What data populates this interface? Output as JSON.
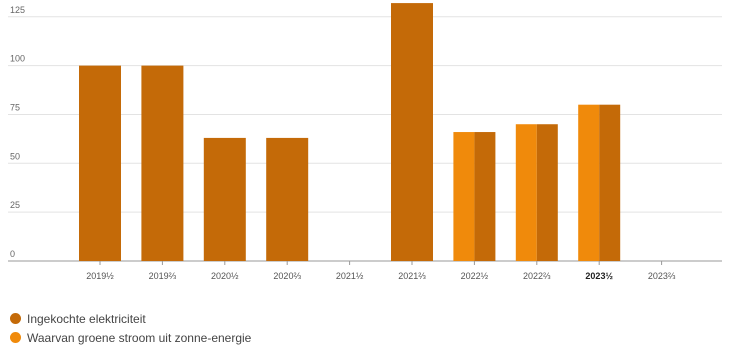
{
  "chart_data": {
    "type": "bar",
    "y_ticks": [
      "0",
      "25",
      "50",
      "75",
      "100",
      "125"
    ],
    "ylim": [
      0,
      130
    ],
    "grid": true,
    "categories": [
      {
        "label": "2019½",
        "bold": false
      },
      {
        "label": "2019⅔",
        "bold": false
      },
      {
        "label": "2020½",
        "bold": false
      },
      {
        "label": "2020⅔",
        "bold": false
      },
      {
        "label": "2021½",
        "bold": false
      },
      {
        "label": "2021⅔",
        "bold": false
      },
      {
        "label": "2022½",
        "bold": false
      },
      {
        "label": "2022⅔",
        "bold": false
      },
      {
        "label": "2023½",
        "bold": true
      },
      {
        "label": "2023⅔",
        "bold": false
      }
    ],
    "series": [
      {
        "name": "Ingekochte elektriciteit",
        "color": "#c46a08",
        "values": [
          100,
          100,
          63,
          63,
          0,
          132,
          66,
          70,
          80,
          0
        ]
      },
      {
        "name": "Waarvan groene stroom uit zonne-energie",
        "color": "#f08a0b",
        "values": [
          0,
          0,
          0,
          0,
          0,
          0,
          66,
          70,
          80,
          0
        ]
      }
    ],
    "legend_position": "bottom-left"
  }
}
